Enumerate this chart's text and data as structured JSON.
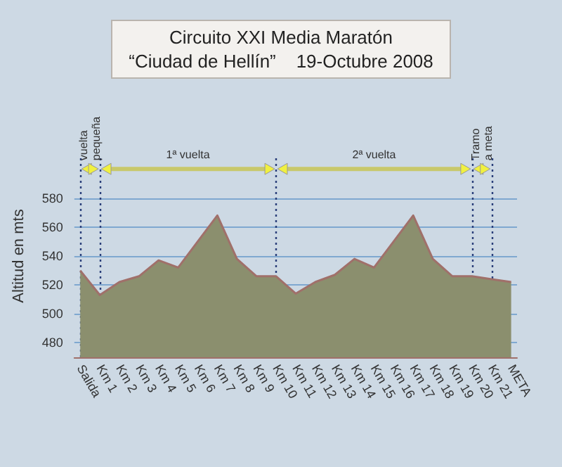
{
  "chart_data": {
    "type": "area",
    "title": "Circuito XXI Media Maratón",
    "subtitle": "“Ciudad de Hellín”    19-Octubre 2008",
    "ylabel": "Altitud en mts",
    "categories": [
      "Salida",
      "Km 1",
      "Km 2",
      "Km 3",
      "Km 4",
      "Km 5",
      "Km 6",
      "Km 7",
      "Km 8",
      "Km 9",
      "Km 10",
      "Km 11",
      "Km 12",
      "Km 13",
      "Km 14",
      "Km 15",
      "Km 16",
      "Km 17",
      "Km 18",
      "Km 19",
      "Km 20",
      "Km 21",
      "META"
    ],
    "values": [
      530,
      513,
      522,
      526,
      537,
      532,
      550,
      568,
      538,
      526,
      526,
      514,
      522,
      527,
      538,
      532,
      550,
      568,
      538,
      526,
      526,
      524,
      522
    ],
    "color": "#8b8f6e",
    "ylim": [
      470,
      610
    ],
    "yticks": [
      480,
      500,
      520,
      540,
      560,
      580
    ],
    "grid": "y",
    "ref_lines": [
      {
        "axis": "x",
        "value": "Salida",
        "color": "#2a3f7a",
        "line_style": "dotted"
      },
      {
        "axis": "x",
        "value": "Km 1",
        "color": "#2a3f7a",
        "line_style": "dotted"
      },
      {
        "axis": "x",
        "value": "Km 10",
        "color": "#2a3f7a",
        "line_style": "dotted"
      },
      {
        "axis": "x",
        "value": "Km 20",
        "color": "#2a3f7a",
        "line_style": "dotted"
      },
      {
        "axis": "x",
        "value": "Km 21",
        "color": "#2a3f7a",
        "line_style": "dotted"
      }
    ],
    "annotations": [
      "vuelta pequeña",
      "1ª vuelta",
      "2ª vuelta",
      "Tramo a meta"
    ]
  }
}
